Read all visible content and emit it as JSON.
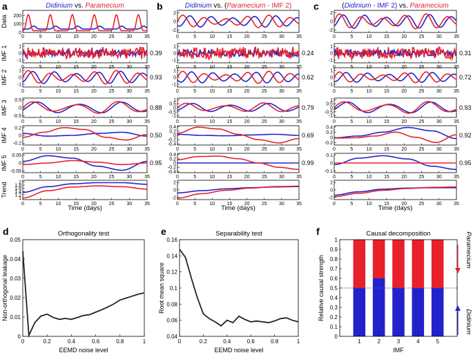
{
  "colors": {
    "blue": "#2222cc",
    "red": "#e8202a",
    "black": "#222222",
    "dotted": "#555555"
  },
  "chart_data": [
    {
      "id": "a",
      "type": "line",
      "letter": "a",
      "title": {
        "a": "Didinium",
        "b": " vs. ",
        "c": "Paramecium",
        "a_color": "blue",
        "c_color": "red"
      },
      "xlabel": "Time (days)",
      "x_ticks": [
        "0",
        "5",
        "10",
        "15",
        "20",
        "25",
        "30",
        "35"
      ],
      "xlim": [
        0,
        35
      ],
      "rows": [
        {
          "label": "Data",
          "yticks": [
            "0",
            "100",
            "200"
          ],
          "ylim": [
            0,
            260
          ],
          "corr": "",
          "kind": "data",
          "blue_base": 40,
          "blue_amp": 35,
          "red_base": 20,
          "red_amp": 190,
          "period": 6.2
        },
        {
          "label": "IMF 1",
          "yticks": [
            "-1",
            "0",
            "1"
          ],
          "ylim": [
            -1.4,
            1.4
          ],
          "corr": "0.39",
          "kind": "noise",
          "amp": 1.0
        },
        {
          "label": "IMF 2",
          "yticks": [
            "-1",
            "0",
            "1"
          ],
          "ylim": [
            -1.4,
            1.4
          ],
          "corr": "0.93",
          "kind": "osc",
          "amp": 1.0,
          "period": 6.2,
          "lag": 1.2
        },
        {
          "label": "IMF 3",
          "yticks": [
            "-0.5",
            "0",
            "0.5"
          ],
          "ylim": [
            -0.6,
            0.6
          ],
          "corr": "0.88",
          "kind": "osc",
          "amp": 0.4,
          "period": 12,
          "lag": 1.0
        },
        {
          "label": "IMF 4",
          "yticks": [
            "-0.2",
            "0",
            "0.2"
          ],
          "ylim": [
            -0.25,
            0.25
          ],
          "corr": "0.50",
          "kind": "slow",
          "blue": [
            0.05,
            -0.02,
            0.0,
            0.05,
            0.08,
            -0.02
          ],
          "red": [
            -0.05,
            0.08,
            0.2,
            0.15,
            -0.05,
            -0.12,
            0.02
          ]
        },
        {
          "label": "IMF 5",
          "yticks": [
            "-0.05",
            "0",
            "0.05"
          ],
          "ylim": [
            -0.06,
            0.06
          ],
          "corr": "0.95",
          "kind": "slow",
          "blue": [
            0.01,
            0.045,
            0.03,
            -0.02,
            -0.045,
            0.01
          ],
          "red": [
            -0.01,
            0.0,
            0.015,
            0.005,
            -0.01,
            0.0
          ]
        },
        {
          "label": "Trend",
          "yticks": [
            "1",
            "1.2",
            "1.4",
            "1.6",
            "1.8",
            "2"
          ],
          "ylim": [
            0.9,
            2.1
          ],
          "corr": "",
          "kind": "slow",
          "blue": [
            1.35,
            1.7,
            1.88,
            1.95,
            1.95,
            1.85
          ],
          "red": [
            1.0,
            1.45,
            1.68,
            1.75,
            1.7,
            1.55
          ]
        }
      ]
    },
    {
      "id": "b",
      "type": "line",
      "letter": "b",
      "title": {
        "a": "Didinium",
        "b": " vs. (",
        "c": "Paramecium",
        "d": " - IMF 2)",
        "a_color": "blue",
        "c_color": "red",
        "d_color": "red"
      },
      "xlabel": "Time (days)",
      "x_ticks": [
        "0",
        "5",
        "10",
        "15",
        "20",
        "25",
        "30",
        "35"
      ],
      "xlim": [
        0,
        35
      ],
      "rows": [
        {
          "label": "",
          "yticks": [
            "-2",
            "0",
            "2"
          ],
          "ylim": [
            -2.6,
            2.6
          ],
          "corr": "",
          "kind": "osc",
          "amp": 1.5,
          "period": 6.2,
          "lag": 2.0
        },
        {
          "label": "",
          "yticks": [
            "-1",
            "0",
            "1"
          ],
          "ylim": [
            -1.4,
            1.4
          ],
          "corr": "0.24",
          "kind": "noise",
          "amp": 1.0
        },
        {
          "label": "",
          "yticks": [
            "-1",
            "0",
            "1"
          ],
          "ylim": [
            -1.4,
            1.4
          ],
          "corr": "0.62",
          "kind": "osc",
          "amp": 0.9,
          "period": 6.2,
          "lag": 2.5
        },
        {
          "label": "",
          "yticks": [
            "-1",
            "-0.5",
            "0",
            "0.5",
            "1"
          ],
          "ylim": [
            -1.2,
            1.2
          ],
          "corr": "0.79",
          "kind": "osc",
          "amp": 0.6,
          "period": 11,
          "lag": 1.5
        },
        {
          "label": "",
          "yticks": [
            "-0.4",
            "-0.2",
            "0",
            "0.2",
            "0.4"
          ],
          "ylim": [
            -0.45,
            0.45
          ],
          "corr": "0.69",
          "kind": "slow",
          "blue": [
            0.05,
            0.0,
            -0.02,
            0.02,
            0.05,
            0.0
          ],
          "red": [
            0.1,
            0.38,
            0.3,
            0.05,
            -0.2,
            -0.35,
            -0.15
          ]
        },
        {
          "label": "",
          "yticks": [
            "-0.4",
            "-0.2",
            "0",
            "0.2",
            "0.4"
          ],
          "ylim": [
            -0.45,
            0.45
          ],
          "corr": "0.99",
          "kind": "slow",
          "blue": [
            0.0,
            0.0,
            0.0,
            0.0,
            0.0,
            0.0
          ],
          "red": [
            0.15,
            0.3,
            0.32,
            0.2,
            0.0,
            -0.2,
            -0.3
          ]
        },
        {
          "label": "",
          "yticks": [
            "-2",
            "0",
            "2"
          ],
          "ylim": [
            -2.6,
            2.6
          ],
          "corr": "",
          "kind": "slow",
          "blue": [
            -0.8,
            -0.2,
            0.3,
            0.6,
            0.8,
            0.9
          ],
          "red": [
            -2.2,
            -1.0,
            -0.1,
            0.5,
            0.9,
            1.0
          ]
        }
      ]
    },
    {
      "id": "c",
      "type": "line",
      "letter": "c",
      "title": {
        "a": "(",
        "b": "Didinium",
        "c": " - IMF 2)",
        "d": " vs. ",
        "e": "Paramecium",
        "b_color": "blue",
        "c_color": "blue",
        "e_color": "red"
      },
      "xlabel": "Time (days)",
      "x_ticks": [
        "0",
        "5",
        "10",
        "15",
        "20",
        "25",
        "30",
        "35"
      ],
      "xlim": [
        0,
        35
      ],
      "rows": [
        {
          "label": "",
          "yticks": [
            "-2",
            "0",
            "2"
          ],
          "ylim": [
            -2.6,
            2.6
          ],
          "corr": "",
          "kind": "osc",
          "amp": 1.8,
          "period": 6.2,
          "lag": 1.0
        },
        {
          "label": "",
          "yticks": [
            "-1",
            "0",
            "1"
          ],
          "ylim": [
            -1.4,
            1.4
          ],
          "corr": "0.31",
          "kind": "noise",
          "amp": 1.0
        },
        {
          "label": "",
          "yticks": [
            "-1",
            "0",
            "1"
          ],
          "ylim": [
            -1.4,
            1.4
          ],
          "corr": "0.72",
          "kind": "osc",
          "amp": 0.8,
          "period": 6.2,
          "lag": 1.8
        },
        {
          "label": "",
          "yticks": [
            "-1",
            "-0.5",
            "0",
            "0.5",
            "1"
          ],
          "ylim": [
            -1.2,
            1.2
          ],
          "corr": "0.93",
          "kind": "osc",
          "amp": 0.8,
          "period": 12,
          "lag": 0.8
        },
        {
          "label": "",
          "yticks": [
            "-0.2",
            "0",
            "0.2",
            "0.4"
          ],
          "ylim": [
            -0.3,
            0.45
          ],
          "corr": "0.92",
          "kind": "slow",
          "blue": [
            -0.02,
            0.05,
            0.2,
            0.38,
            0.25,
            -0.05
          ],
          "red": [
            -0.03,
            -0.02,
            0.05,
            0.2,
            0.0,
            -0.2,
            0.1
          ]
        },
        {
          "label": "",
          "yticks": [
            "-0.1",
            "0",
            "0.1"
          ],
          "ylim": [
            -0.12,
            0.12
          ],
          "corr": "0.95",
          "kind": "slow",
          "blue": [
            -0.02,
            0.06,
            0.09,
            0.05,
            -0.04,
            -0.08
          ],
          "red": [
            0.0,
            0.0,
            0.0,
            0.0,
            0.0,
            0.0
          ]
        },
        {
          "label": "",
          "yticks": [
            "-2",
            "0",
            "2"
          ],
          "ylim": [
            -2.6,
            2.6
          ],
          "corr": "",
          "kind": "slow",
          "blue": [
            -1.4,
            -0.5,
            0.2,
            0.5,
            0.6,
            0.6
          ],
          "red": [
            -1.8,
            -0.9,
            -0.1,
            0.4,
            0.7,
            0.8
          ]
        }
      ]
    },
    {
      "id": "d",
      "type": "line",
      "letter": "d",
      "title": "Orthogonality test",
      "xlabel": "EEMD noise level",
      "ylabel": "Non-orthogonal leakage",
      "x_ticks": [
        "0",
        "0.2",
        "0.4",
        "0.6",
        "0.8",
        "1"
      ],
      "y_ticks": [
        "0",
        "0.01",
        "0.02",
        "0.03",
        "0.04",
        "0.05"
      ],
      "xlim": [
        0,
        1
      ],
      "ylim": [
        0,
        0.05
      ],
      "x": [
        0,
        0.05,
        0.1,
        0.15,
        0.2,
        0.25,
        0.3,
        0.35,
        0.4,
        0.45,
        0.5,
        0.55,
        0.6,
        0.65,
        0.7,
        0.75,
        0.8,
        0.85,
        0.9,
        0.95,
        1.0
      ],
      "y": [
        0.044,
        0.0005,
        0.0072,
        0.0105,
        0.0115,
        0.0098,
        0.0088,
        0.0093,
        0.0088,
        0.0098,
        0.0108,
        0.0112,
        0.0125,
        0.0138,
        0.0152,
        0.0168,
        0.0188,
        0.0198,
        0.0208,
        0.0218,
        0.0225
      ]
    },
    {
      "id": "e",
      "type": "line",
      "letter": "e",
      "title": "Separability test",
      "xlabel": "EEMD noise level",
      "ylabel": "Root mean square",
      "x_ticks": [
        "0",
        "0.2",
        "0.4",
        "0.6",
        "0.8",
        "1"
      ],
      "y_ticks": [
        "0.04",
        "0.06",
        "0.08",
        "0.1",
        "0.12",
        "0.14",
        "0.16"
      ],
      "xlim": [
        0,
        1
      ],
      "ylim": [
        0.04,
        0.16
      ],
      "x": [
        0,
        0.05,
        0.1,
        0.15,
        0.2,
        0.25,
        0.3,
        0.35,
        0.4,
        0.45,
        0.5,
        0.55,
        0.6,
        0.65,
        0.7,
        0.75,
        0.8,
        0.85,
        0.9,
        0.95,
        1.0
      ],
      "y": [
        0.148,
        0.138,
        0.112,
        0.088,
        0.068,
        0.062,
        0.058,
        0.053,
        0.06,
        0.057,
        0.065,
        0.061,
        0.058,
        0.059,
        0.058,
        0.057,
        0.059,
        0.062,
        0.063,
        0.06,
        0.058
      ]
    },
    {
      "id": "f",
      "type": "bar",
      "letter": "f",
      "title": "Causal decomposition",
      "xlabel": "IMF",
      "ylabel": "Relative causal strength",
      "categories": [
        "1",
        "2",
        "3",
        "4",
        "5"
      ],
      "y_ticks": [
        "0",
        "0.1",
        "0.2",
        "0.3",
        "0.4",
        "0.5",
        "0.6",
        "0.7",
        "0.8",
        "0.9",
        "1"
      ],
      "ylim": [
        0,
        1
      ],
      "series": [
        {
          "name": "Didinium",
          "color": "blue",
          "values": [
            0.5,
            0.6,
            0.5,
            0.5,
            0.5
          ]
        },
        {
          "name": "Paramecium",
          "color": "red",
          "values": [
            0.5,
            0.4,
            0.5,
            0.5,
            0.5
          ]
        }
      ],
      "reference_line": 0.5,
      "side_label_top": "Paramecium",
      "side_label_bottom": "Didinium"
    }
  ]
}
